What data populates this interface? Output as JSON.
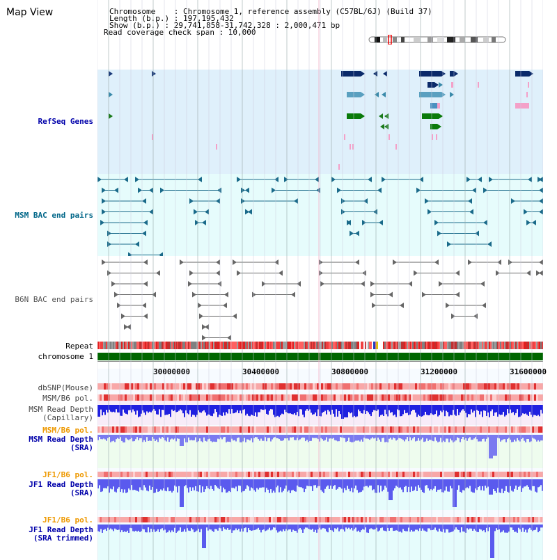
{
  "view": {
    "title": "Map View"
  },
  "header": {
    "line1": "Chromosome    : Chromosome 1, reference assembly (C57BL/6J) (Build 37)",
    "line2": "Length (b.p.) : 197,195,432",
    "line3": "Show (b.p.) : 29,741,858-31,742,328 : 2,000,471 bp",
    "line4": "Read coverage check span : 10,000"
  },
  "tracks": {
    "refseq": "RefSeq Genes",
    "msm_bac": "MSM BAC end pairs",
    "b6n_bac": "B6N BAC end pairs",
    "repeat": "Repeat",
    "chromosome": "chromosome 1",
    "dbsnp": "dbSNP(Mouse)",
    "msm_b6_pol_1": "MSM/B6 pol.",
    "msm_depth_cap_1": "MSM Read Depth",
    "msm_depth_cap_2": "(Capillary)",
    "msm_b6_pol_2": "MSM/B6 pol.",
    "msm_depth_sra_1": "MSM Read Depth",
    "msm_depth_sra_2": "(SRA)",
    "jf1_b6_pol_1": "JF1/B6 pol.",
    "jf1_depth_sra_1": "JF1 Read Depth",
    "jf1_depth_sra_2": "(SRA)",
    "jf1_b6_pol_2": "JF1/B6 pol.",
    "jf1_depth_trim_1": "JF1 Read Depth",
    "jf1_depth_trim_2": "(SRA trimmed)"
  },
  "ruler": {
    "ticks": [
      "30000000",
      "30400000",
      "30800000",
      "31200000",
      "31600000"
    ]
  },
  "colors": {
    "refseq_bg": "#dff0fb",
    "bac_bg": "#e6fcfc",
    "refseq_label": "#0000aa",
    "msm_label": "#006688",
    "b6n_label": "#555555",
    "orange_label": "#ee9900",
    "depth_label": "#0000aa",
    "chromosome_bar": "#006600"
  }
}
